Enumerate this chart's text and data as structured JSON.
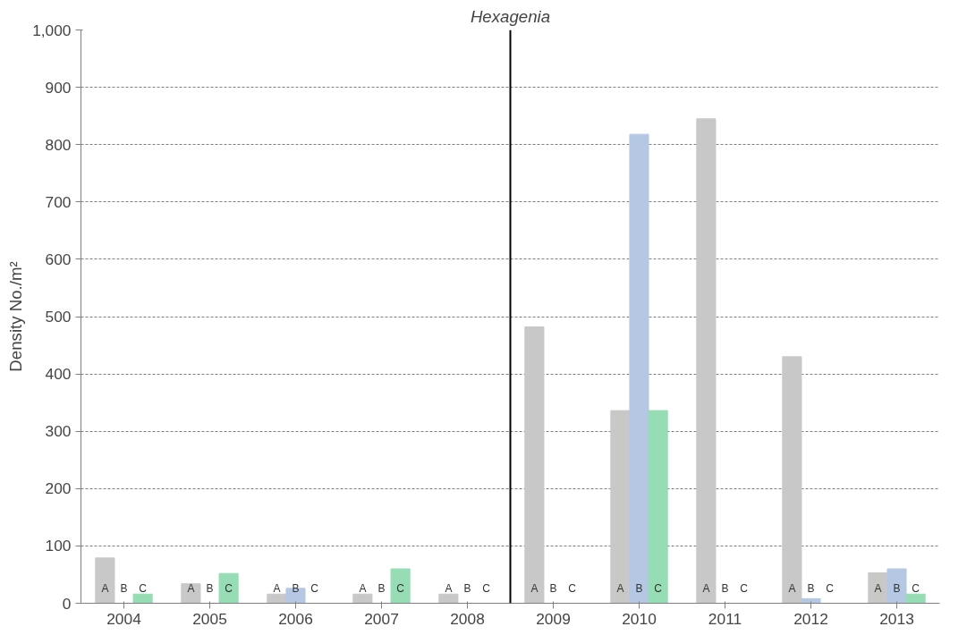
{
  "chart_data": {
    "type": "bar",
    "title": "Hexagenia",
    "ylabel": "Density No./m²",
    "x": [
      2004,
      2005,
      2006,
      2007,
      2008,
      2009,
      2010,
      2011,
      2012,
      2013
    ],
    "series": [
      {
        "name": "A",
        "color": "#c8c8c8",
        "values": [
          79,
          34,
          16,
          16,
          16,
          482,
          336,
          845,
          430,
          53
        ]
      },
      {
        "name": "B",
        "color": "#b4c8e4",
        "values": [
          0,
          0,
          26,
          0,
          0,
          0,
          818,
          0,
          8,
          60
        ]
      },
      {
        "name": "C",
        "color": "#96dcb4",
        "values": [
          16,
          52,
          0,
          60,
          0,
          0,
          336,
          0,
          0,
          16
        ]
      }
    ],
    "xlim": [
      2003.5,
      2013.5
    ],
    "xticks": [
      2004,
      2005,
      2006,
      2007,
      2008,
      2009,
      2010,
      2011,
      2012,
      2013
    ],
    "ylim": [
      0,
      1000
    ],
    "yticks": [
      0,
      100,
      200,
      300,
      400,
      500,
      600,
      700,
      800,
      900,
      {
        "value": 1000,
        "label": "1,000"
      }
    ],
    "ref_lines": [
      {
        "axis": "x",
        "value": 2008.5,
        "color": "#000000"
      }
    ],
    "grid": "y",
    "legend": false
  }
}
